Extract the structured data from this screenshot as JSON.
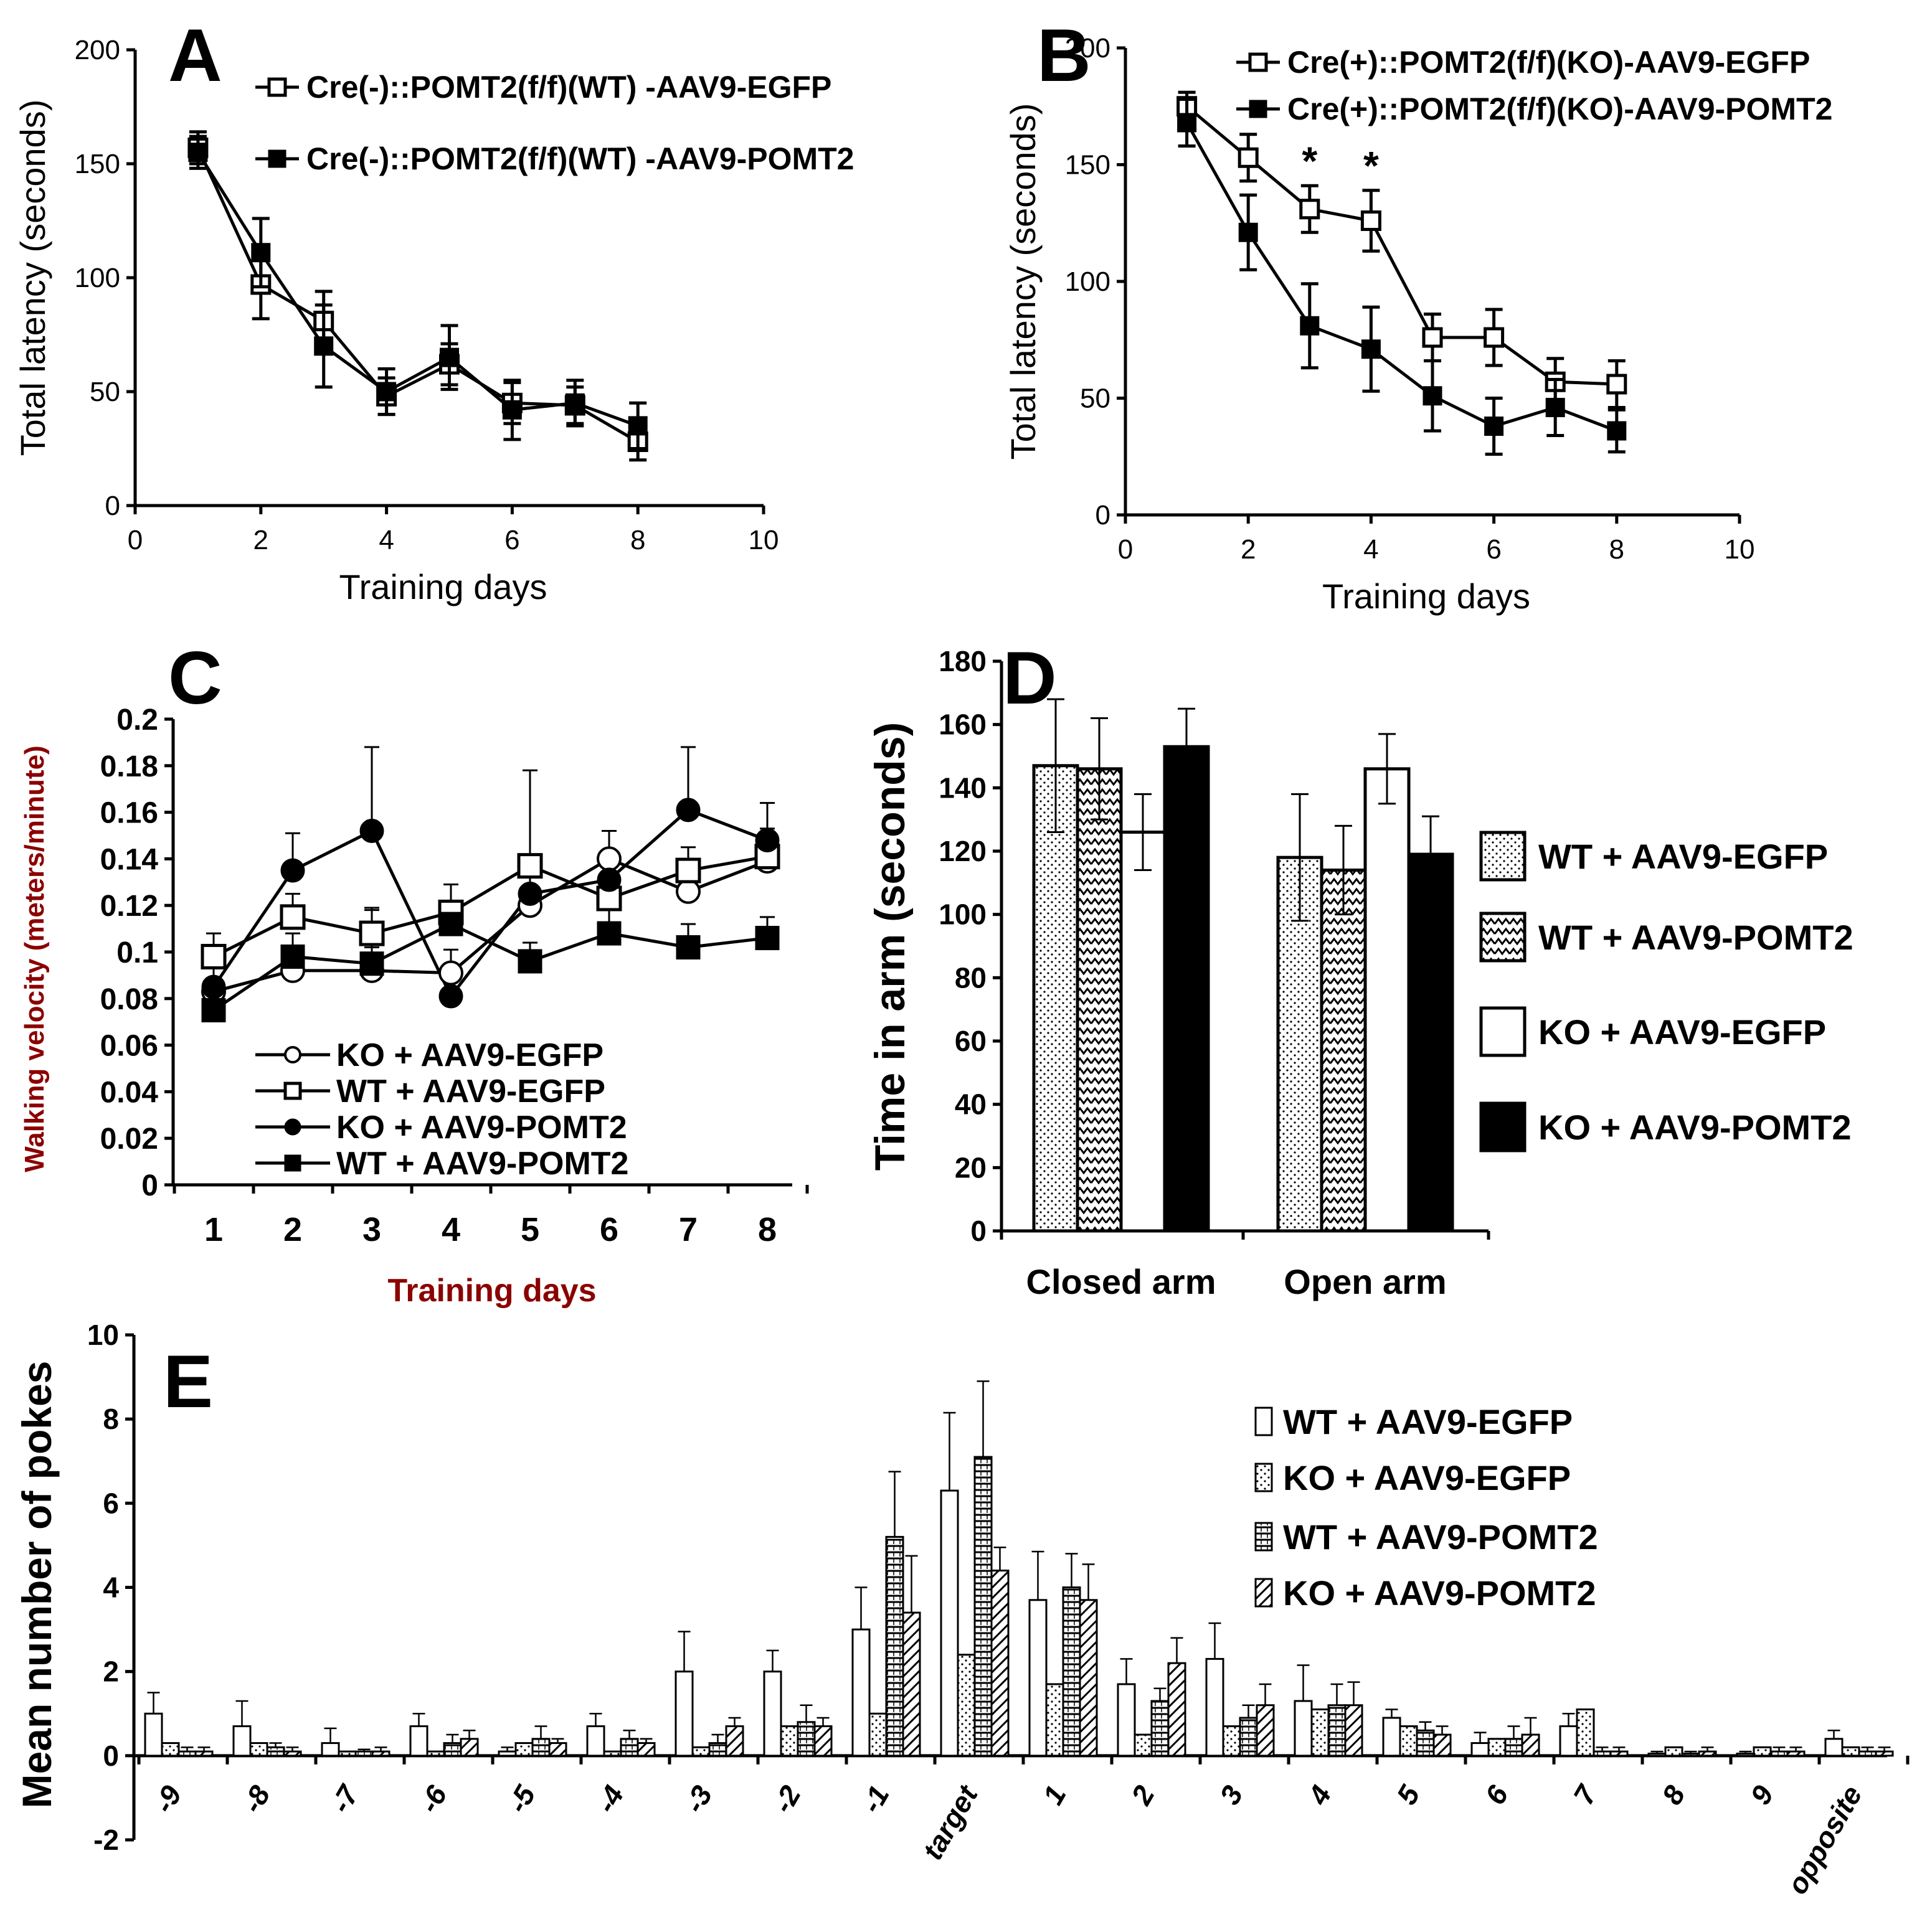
{
  "panels": {
    "A": "A",
    "B": "B",
    "C": "C",
    "D": "D",
    "E": "E"
  },
  "chart_data": [
    {
      "id": "A",
      "type": "line",
      "xlabel": "Training days",
      "ylabel": "Total latency (seconds)",
      "xlim": [
        0,
        10
      ],
      "ylim": [
        0,
        200
      ],
      "xticks": [
        "0",
        "2",
        "4",
        "6",
        "8",
        "10"
      ],
      "yticks": [
        "0",
        "50",
        "100",
        "150",
        "200"
      ],
      "x": [
        1,
        2,
        3,
        4,
        5,
        6,
        7,
        8
      ],
      "series": [
        {
          "name": "Cre(-)::POMT2(f/f)(WT) -AAV9-EGFP",
          "marker": "open-square",
          "values": [
            157,
            97,
            81,
            48,
            62,
            45,
            44,
            28
          ],
          "errors": [
            7,
            15,
            13,
            8,
            9,
            9,
            8,
            8
          ]
        },
        {
          "name": "Cre(-)::POMT2(f/f)(WT) -AAV9-POMT2",
          "marker": "filled-square",
          "values": [
            155,
            111,
            70,
            50,
            65,
            42,
            45,
            35
          ],
          "errors": [
            7,
            15,
            18,
            10,
            14,
            13,
            10,
            10
          ]
        }
      ]
    },
    {
      "id": "B",
      "type": "line",
      "xlabel": "Training days",
      "ylabel": "Total latency (seconds)",
      "xlim": [
        0,
        10
      ],
      "ylim": [
        0,
        200
      ],
      "xticks": [
        "0",
        "2",
        "4",
        "6",
        "8",
        "10"
      ],
      "yticks": [
        "0",
        "50",
        "100",
        "150",
        "200"
      ],
      "x": [
        1,
        2,
        3,
        4,
        5,
        6,
        7,
        8
      ],
      "series": [
        {
          "name": "Cre(+)::POMT2(f/f)(KO)-AAV9-EGFP",
          "marker": "open-square",
          "values": [
            175,
            153,
            131,
            126,
            76,
            76,
            57,
            56
          ],
          "errors": [
            6,
            10,
            10,
            13,
            10,
            12,
            10,
            10
          ]
        },
        {
          "name": "Cre(+)::POMT2(f/f)(KO)-AAV9-POMT2",
          "marker": "filled-square",
          "values": [
            168,
            121,
            81,
            71,
            51,
            38,
            46,
            36
          ],
          "errors": [
            10,
            16,
            18,
            18,
            15,
            12,
            12,
            9
          ]
        }
      ],
      "annotations": [
        "*",
        "*"
      ]
    },
    {
      "id": "C",
      "type": "line",
      "xlabel": "Training days",
      "ylabel": "Walking velocity (meters/minute)",
      "ylim": [
        0,
        0.2
      ],
      "xticks": [
        "1",
        "2",
        "3",
        "4",
        "5",
        "6",
        "7",
        "8"
      ],
      "yticks": [
        "0",
        "0.02",
        "0.04",
        "0.06",
        "0.08",
        "0.1",
        "0.12",
        "0.14",
        "0.16",
        "0.18",
        "0.2"
      ],
      "x": [
        1,
        2,
        3,
        4,
        5,
        6,
        7,
        8
      ],
      "series": [
        {
          "name": "KO + AAV9-EGFP",
          "marker": "open-circle",
          "values": [
            0.083,
            0.092,
            0.092,
            0.091,
            0.12,
            0.14,
            0.126,
            0.139
          ],
          "errors": [
            0.01,
            0.008,
            0.01,
            0.01,
            0.012,
            0.012,
            0.012,
            0.012
          ]
        },
        {
          "name": "WT + AAV9-EGFP",
          "marker": "open-square",
          "values": [
            0.098,
            0.115,
            0.108,
            0.117,
            0.137,
            0.123,
            0.135,
            0.141
          ],
          "errors": [
            0.01,
            0.01,
            0.01,
            0.012,
            0.041,
            0.01,
            0.01,
            0.012
          ]
        },
        {
          "name": "KO + AAV9-POMT2",
          "marker": "filled-circle",
          "values": [
            0.085,
            0.135,
            0.152,
            0.081,
            0.125,
            0.131,
            0.161,
            0.148
          ],
          "errors": [
            0.01,
            0.016,
            0.036,
            0.01,
            0.012,
            0.012,
            0.027,
            0.016
          ]
        },
        {
          "name": "WT + AAV9-POMT2",
          "marker": "filled-square",
          "values": [
            0.075,
            0.098,
            0.095,
            0.112,
            0.096,
            0.108,
            0.102,
            0.106
          ],
          "errors": [
            0.008,
            0.01,
            0.024,
            0.008,
            0.008,
            0.012,
            0.01,
            0.009
          ]
        }
      ]
    },
    {
      "id": "D",
      "type": "bar",
      "xlabel": "",
      "ylabel": "Time in arm (seconds)",
      "ylim": [
        0,
        180
      ],
      "yticks": [
        "0",
        "20",
        "40",
        "60",
        "80",
        "100",
        "120",
        "140",
        "160",
        "180"
      ],
      "categories": [
        "Closed arm",
        "Open arm"
      ],
      "series": [
        {
          "name": "WT + AAV9-EGFP",
          "pattern": "dots",
          "values": [
            147,
            118
          ],
          "errors": [
            21,
            20
          ]
        },
        {
          "name": "WT + AAV9-POMT2",
          "pattern": "zigzag",
          "values": [
            146,
            114
          ],
          "errors": [
            16,
            14
          ]
        },
        {
          "name": "KO + AAV9-EGFP",
          "pattern": "white",
          "values": [
            126,
            146
          ],
          "errors": [
            12,
            11
          ]
        },
        {
          "name": "KO + AAV9-POMT2",
          "pattern": "black",
          "values": [
            153,
            119
          ],
          "errors": [
            12,
            12
          ]
        }
      ]
    },
    {
      "id": "E",
      "type": "bar",
      "xlabel": "",
      "ylabel": "Mean number of pokes",
      "ylim": [
        -2,
        10
      ],
      "yticks": [
        "-2",
        "0",
        "2",
        "4",
        "6",
        "8",
        "10"
      ],
      "categories": [
        "-9",
        "-8",
        "-7",
        "-6",
        "-5",
        "-4",
        "-3",
        "-2",
        "-1",
        "target",
        "1",
        "2",
        "3",
        "4",
        "5",
        "6",
        "7",
        "8",
        "9",
        "opposite"
      ],
      "series": [
        {
          "name": "WT + AAV9-EGFP",
          "pattern": "white",
          "values": [
            1.0,
            0.7,
            0.3,
            0.7,
            0.1,
            0.7,
            2.0,
            2.0,
            3.0,
            6.3,
            3.7,
            1.7,
            2.3,
            1.3,
            0.9,
            0.3,
            0.7,
            0.05,
            0.05,
            0.4
          ],
          "errors": [
            0.5,
            0.6,
            0.35,
            0.3,
            0.1,
            0.3,
            0.95,
            0.5,
            1.0,
            1.85,
            1.15,
            0.6,
            0.85,
            0.85,
            0.2,
            0.25,
            0.3,
            0.05,
            0.05,
            0.2
          ]
        },
        {
          "name": "KO + AAV9-EGFP",
          "pattern": "dots",
          "values": [
            0.3,
            0.3,
            0.1,
            0.1,
            0.3,
            0.1,
            0.2,
            0.7,
            1.0,
            2.4,
            1.7,
            0.5,
            0.7,
            1.1,
            0.7,
            0.4,
            1.1,
            0.2,
            0.2,
            0.2
          ]
        },
        {
          "name": "WT + AAV9-POMT2",
          "pattern": "hstripes",
          "values": [
            0.1,
            0.2,
            0.1,
            0.3,
            0.4,
            0.4,
            0.3,
            0.8,
            5.2,
            7.1,
            4.0,
            1.3,
            0.9,
            1.2,
            0.6,
            0.4,
            0.1,
            0.05,
            0.1,
            0.1
          ],
          "errors": [
            0.1,
            0.1,
            0.05,
            0.2,
            0.3,
            0.2,
            0.2,
            0.4,
            1.55,
            1.8,
            0.8,
            0.3,
            0.3,
            0.5,
            0.2,
            0.3,
            0.1,
            0.05,
            0.1,
            0.1
          ]
        },
        {
          "name": "KO + AAV9-POMT2",
          "pattern": "diagonal",
          "values": [
            0.1,
            0.1,
            0.1,
            0.4,
            0.3,
            0.3,
            0.7,
            0.7,
            3.4,
            4.4,
            3.7,
            2.2,
            1.2,
            1.2,
            0.5,
            0.5,
            0.1,
            0.1,
            0.1,
            0.1
          ],
          "errors": [
            0.1,
            0.1,
            0.1,
            0.2,
            0.1,
            0.1,
            0.2,
            0.2,
            1.35,
            0.55,
            0.85,
            0.6,
            0.5,
            0.55,
            0.2,
            0.4,
            0.1,
            0.1,
            0.1,
            0.1
          ]
        }
      ]
    }
  ]
}
